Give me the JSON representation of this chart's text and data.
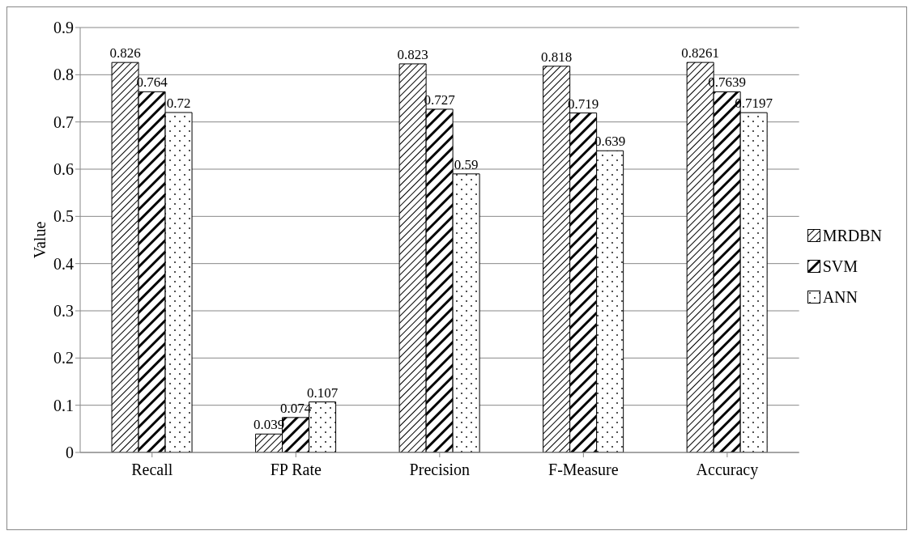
{
  "chart_data": {
    "type": "bar",
    "ylabel": "Value",
    "categories": [
      "Recall",
      "FP Rate",
      "Precision",
      "F-Measure",
      "Accuracy"
    ],
    "series": [
      {
        "name": "MRDBN",
        "color": "#000000",
        "values": [
          0.826,
          0.039,
          0.823,
          0.818,
          0.8261
        ]
      },
      {
        "name": "SVM",
        "color": "#000000",
        "values": [
          0.764,
          0.074,
          0.727,
          0.719,
          0.7639
        ]
      },
      {
        "name": "ANN",
        "color": "#000000",
        "values": [
          0.72,
          0.107,
          0.59,
          0.639,
          0.7197
        ]
      }
    ],
    "ylim": [
      0,
      0.9
    ],
    "yticks": [
      0,
      0.1,
      0.2,
      0.3,
      0.4,
      0.5,
      0.6,
      0.7,
      0.8,
      0.9
    ],
    "grid": "y",
    "legend": "right",
    "data_labels": true
  }
}
